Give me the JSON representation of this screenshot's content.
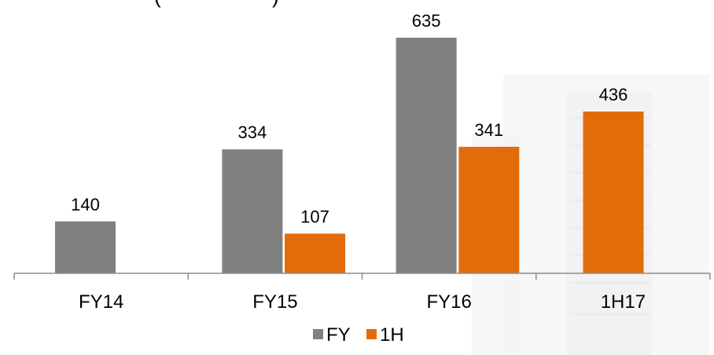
{
  "chart_data": {
    "type": "bar",
    "title": "",
    "categories": [
      "FY14",
      "FY15",
      "FY16",
      "1H17"
    ],
    "series": [
      {
        "name": "FY",
        "values": [
          140,
          334,
          635,
          null
        ],
        "color": "#808080"
      },
      {
        "name": "1H",
        "values": [
          null,
          107,
          341,
          436
        ],
        "color": "#E36C0A"
      }
    ],
    "ylim": [
      0,
      640
    ],
    "grid": false,
    "legend_position": "bottom",
    "xlabel": "",
    "ylabel": ""
  }
}
